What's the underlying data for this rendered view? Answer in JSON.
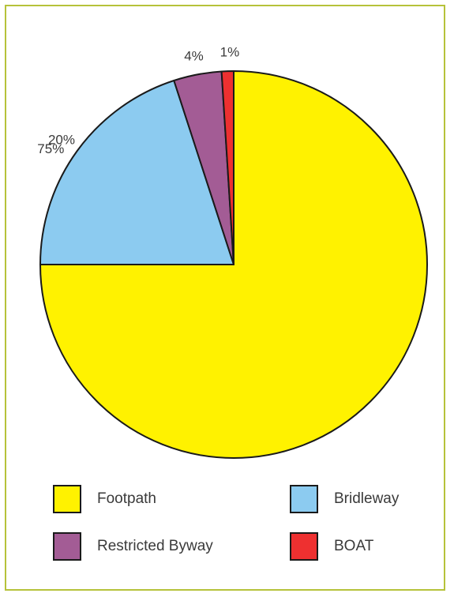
{
  "chart_data": {
    "type": "pie",
    "title": "",
    "categories": [
      "Footpath",
      "Bridleway",
      "Restricted Byway",
      "BOAT"
    ],
    "values": [
      75,
      20,
      4,
      1
    ],
    "labels": [
      "75%",
      "20%",
      "4%",
      "1%"
    ],
    "colors": [
      "#fff200",
      "#8ccbf0",
      "#a35c95",
      "#ee3030"
    ],
    "start": "12 o'clock",
    "direction": "clockwise"
  },
  "legend": {
    "items": [
      {
        "label": "Footpath",
        "color": "#fff200"
      },
      {
        "label": "Bridleway",
        "color": "#8ccbf0"
      },
      {
        "label": "Restricted Byway",
        "color": "#a35c95"
      },
      {
        "label": "BOAT",
        "color": "#ee3030"
      }
    ]
  },
  "colors": {
    "frame_border": "#b6c23a",
    "outline": "#1a1a1a"
  }
}
